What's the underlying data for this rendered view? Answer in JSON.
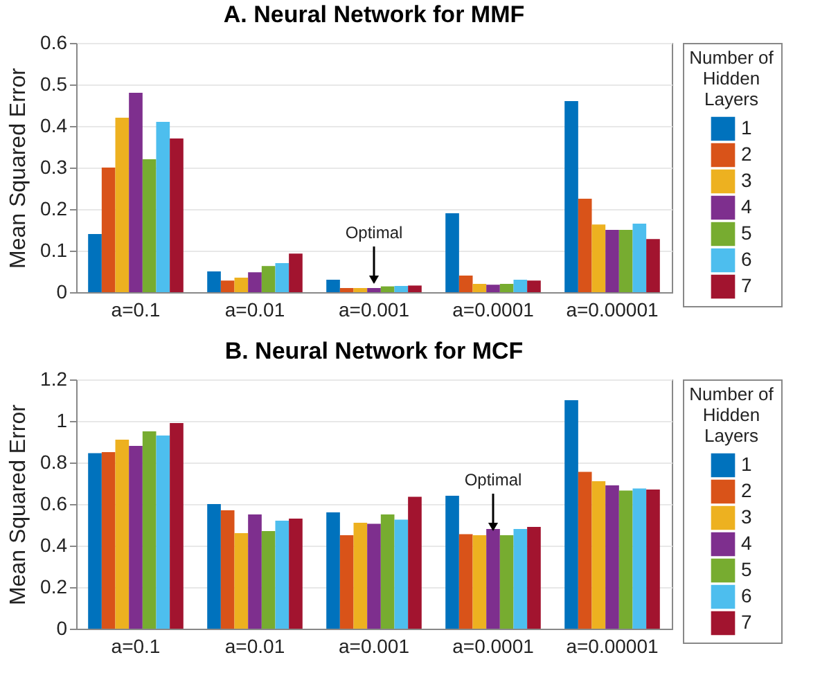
{
  "chart_data": [
    {
      "type": "bar",
      "title": "A. Neural Network for MMF",
      "ylabel": "Mean Squared Error",
      "legend_title": "Number of Hidden Layers",
      "legend": "right",
      "grid": "y",
      "categories": [
        "a=0.1",
        "a=0.01",
        "a=0.001",
        "a=0.0001",
        "a=0.00001"
      ],
      "ylim": [
        0,
        0.6
      ],
      "yticks": [
        0,
        0.1,
        0.2,
        0.3,
        0.4,
        0.5,
        0.6
      ],
      "annotations": [
        {
          "text": "Optimal",
          "x": "a=0.001",
          "y": 0.01
        }
      ],
      "series": [
        {
          "name": "1",
          "color": "#0072bd",
          "values": [
            0.14,
            0.05,
            0.03,
            0.19,
            0.46
          ]
        },
        {
          "name": "2",
          "color": "#d95319",
          "values": [
            0.3,
            0.028,
            0.01,
            0.04,
            0.225
          ]
        },
        {
          "name": "3",
          "color": "#edb120",
          "values": [
            0.42,
            0.035,
            0.01,
            0.02,
            0.163
          ]
        },
        {
          "name": "4",
          "color": "#7e2f8e",
          "values": [
            0.48,
            0.048,
            0.01,
            0.018,
            0.15
          ]
        },
        {
          "name": "5",
          "color": "#77ac30",
          "values": [
            0.32,
            0.063,
            0.014,
            0.02,
            0.15
          ]
        },
        {
          "name": "6",
          "color": "#4dbeee",
          "values": [
            0.41,
            0.07,
            0.015,
            0.03,
            0.165
          ]
        },
        {
          "name": "7",
          "color": "#a2142f",
          "values": [
            0.37,
            0.093,
            0.016,
            0.028,
            0.128
          ]
        }
      ]
    },
    {
      "type": "bar",
      "title": "B. Neural Network for MCF",
      "ylabel": "Mean Squared Error",
      "legend_title": "Number of Hidden Layers",
      "legend": "right",
      "grid": "y",
      "categories": [
        "a=0.1",
        "a=0.01",
        "a=0.001",
        "a=0.0001",
        "a=0.00001"
      ],
      "ylim": [
        0,
        1.2
      ],
      "yticks": [
        0,
        0.2,
        0.4,
        0.6,
        0.8,
        1,
        1.2
      ],
      "annotations": [
        {
          "text": "Optimal",
          "x": "a=0.0001",
          "y": 0.45
        }
      ],
      "series": [
        {
          "name": "1",
          "color": "#0072bd",
          "values": [
            0.845,
            0.6,
            0.56,
            0.64,
            1.1
          ]
        },
        {
          "name": "2",
          "color": "#d95319",
          "values": [
            0.85,
            0.57,
            0.45,
            0.455,
            0.755
          ]
        },
        {
          "name": "3",
          "color": "#edb120",
          "values": [
            0.91,
            0.46,
            0.51,
            0.45,
            0.71
          ]
        },
        {
          "name": "4",
          "color": "#7e2f8e",
          "values": [
            0.88,
            0.55,
            0.505,
            0.48,
            0.69
          ]
        },
        {
          "name": "5",
          "color": "#77ac30",
          "values": [
            0.95,
            0.47,
            0.55,
            0.45,
            0.665
          ]
        },
        {
          "name": "6",
          "color": "#4dbeee",
          "values": [
            0.93,
            0.52,
            0.525,
            0.48,
            0.675
          ]
        },
        {
          "name": "7",
          "color": "#a2142f",
          "values": [
            0.99,
            0.53,
            0.635,
            0.49,
            0.67
          ]
        }
      ]
    }
  ]
}
